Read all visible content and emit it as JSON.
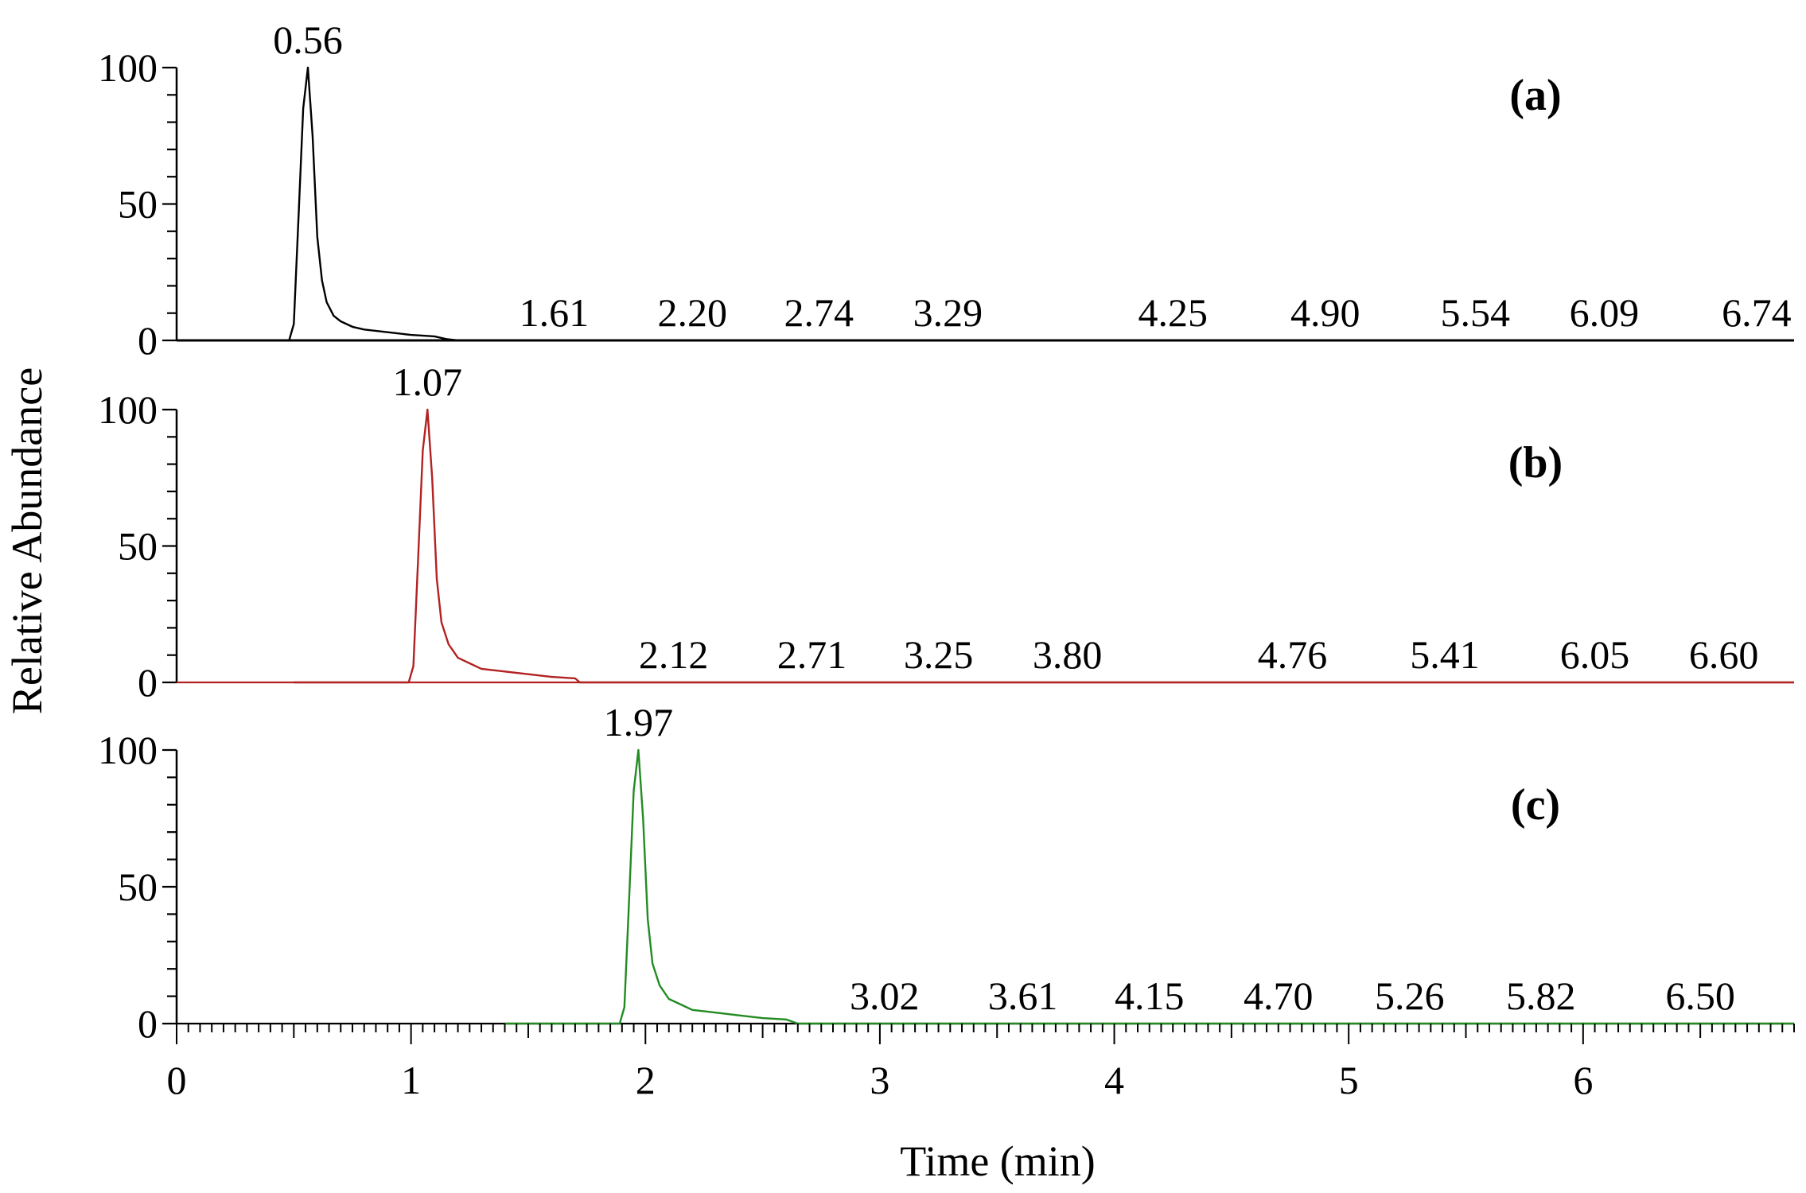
{
  "figure": {
    "y_axis_label": "Relative Abundance",
    "x_axis_label": "Time (min)"
  },
  "chart_data": {
    "type": "line",
    "xlabel": "Time (min)",
    "ylabel": "Relative Abundance",
    "xlim": [
      0,
      6.9
    ],
    "x_ticks": [
      "0",
      "1",
      "2",
      "3",
      "4",
      "5",
      "6"
    ],
    "ylim": [
      0,
      100
    ],
    "y_ticks": [
      "0",
      "50",
      "100"
    ],
    "grid": false,
    "panels": [
      {
        "tag": "(a)",
        "color": "#000000",
        "trace_start": 0.0,
        "trace_end": 6.9,
        "series": [
          {
            "x": [
              0.0,
              0.48,
              0.5,
              0.52,
              0.54,
              0.56,
              0.58,
              0.6,
              0.62,
              0.64,
              0.67,
              0.7,
              0.75,
              0.8,
              0.9,
              1.0,
              1.1,
              1.15,
              1.2,
              1.3,
              6.9
            ],
            "y": [
              0,
              0,
              6,
              45,
              85,
              100,
              75,
              38,
              22,
              14,
              9,
              7,
              5,
              4,
              3,
              2,
              1.5,
              0.5,
              0,
              0,
              0
            ]
          }
        ],
        "peak_labels": [
          "0.56",
          "1.61",
          "2.20",
          "2.74",
          "3.29",
          "4.25",
          "4.90",
          "5.54",
          "6.09",
          "6.74"
        ],
        "peak_label_x": [
          0.56,
          1.61,
          2.2,
          2.74,
          3.29,
          4.25,
          4.9,
          5.54,
          6.09,
          6.74
        ],
        "peak_label_y": [
          100,
          0,
          0,
          0,
          0,
          0,
          0,
          0,
          0,
          0
        ]
      },
      {
        "tag": "(b)",
        "color": "#b22222",
        "trace_start": 0.5,
        "trace_end": 6.9,
        "series": [
          {
            "x": [
              0.5,
              0.99,
              1.01,
              1.03,
              1.05,
              1.07,
              1.09,
              1.11,
              1.13,
              1.16,
              1.2,
              1.25,
              1.3,
              1.4,
              1.5,
              1.6,
              1.7,
              1.72,
              6.9
            ],
            "y": [
              0,
              0,
              6,
              45,
              85,
              100,
              75,
              38,
              22,
              14,
              9,
              7,
              5,
              4,
              3,
              2,
              1.5,
              0,
              0
            ]
          }
        ],
        "peak_labels": [
          "1.07",
          "2.12",
          "2.71",
          "3.25",
          "3.80",
          "4.76",
          "5.41",
          "6.05",
          "6.60"
        ],
        "peak_label_x": [
          1.07,
          2.12,
          2.71,
          3.25,
          3.8,
          4.76,
          5.41,
          6.05,
          6.6
        ],
        "peak_label_y": [
          100,
          0,
          0,
          0,
          0,
          0,
          0,
          0,
          0
        ]
      },
      {
        "tag": "(c)",
        "color": "#228b22",
        "trace_start": 1.4,
        "trace_end": 6.9,
        "series": [
          {
            "x": [
              1.4,
              1.89,
              1.91,
              1.93,
              1.95,
              1.97,
              1.99,
              2.01,
              2.03,
              2.06,
              2.1,
              2.15,
              2.2,
              2.3,
              2.4,
              2.5,
              2.6,
              2.65,
              6.9
            ],
            "y": [
              0,
              0,
              6,
              45,
              85,
              100,
              75,
              38,
              22,
              14,
              9,
              7,
              5,
              4,
              3,
              2,
              1.5,
              0,
              0
            ]
          }
        ],
        "peak_labels": [
          "1.97",
          "3.02",
          "3.61",
          "4.15",
          "4.70",
          "5.26",
          "5.82",
          "6.50"
        ],
        "peak_label_x": [
          1.97,
          3.02,
          3.61,
          4.15,
          4.7,
          5.26,
          5.82,
          6.5
        ],
        "peak_label_y": [
          100,
          0,
          0,
          0,
          0,
          0,
          0,
          0
        ]
      }
    ]
  }
}
